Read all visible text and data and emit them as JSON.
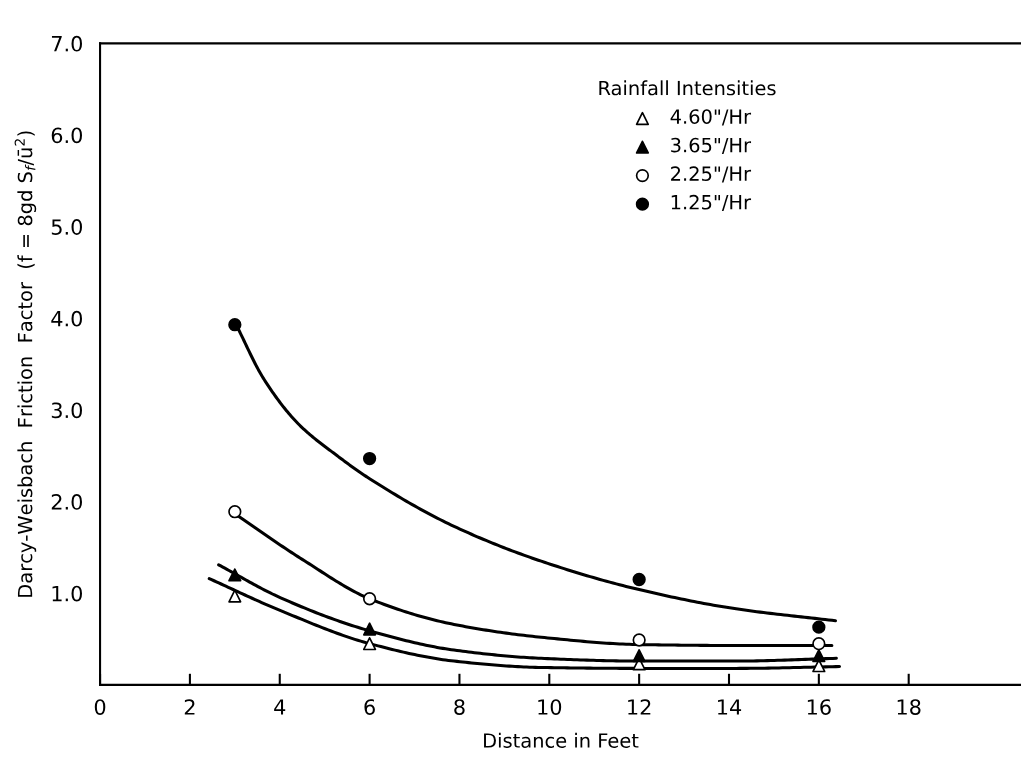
{
  "chart_data": {
    "type": "scatter",
    "xlabel": "Distance in Feet",
    "ylabel": "Darcy-Weisbach  Friction  Factor  (f = 8gd S$_{f}$/ū$^{2}$)",
    "legend_title": "Rainfall Intensities",
    "legend": "top",
    "grid": false,
    "xlim": [
      0,
      20.5
    ],
    "ylim": [
      0,
      7
    ],
    "xticks": [
      0,
      2,
      4,
      6,
      8,
      10,
      12,
      14,
      16,
      18
    ],
    "yticks": [
      {
        "value": 1,
        "label": "1.0"
      },
      {
        "value": 2,
        "label": "2.0"
      },
      {
        "value": 3,
        "label": "3.0"
      },
      {
        "value": 4,
        "label": "4.0"
      },
      {
        "value": 5,
        "label": "5.0"
      },
      {
        "value": 6,
        "label": "6.0"
      },
      {
        "value": 7,
        "label": "7.0"
      }
    ],
    "series": [
      {
        "name": "4.60\"/Hr",
        "marker": "triangle",
        "color": "#ffffff",
        "x": [
          3,
          6,
          12,
          16
        ],
        "values": [
          0.97,
          0.45,
          0.23,
          0.21
        ]
      },
      {
        "name": "3.65\"/Hr",
        "marker": "triangle",
        "color": "#000000",
        "x": [
          3,
          6,
          12,
          16
        ],
        "values": [
          1.2,
          0.61,
          0.32,
          0.32
        ]
      },
      {
        "name": "2.25\"/Hr",
        "marker": "circle",
        "color": "#ffffff",
        "x": [
          3,
          6,
          12,
          16
        ],
        "values": [
          1.89,
          0.94,
          0.49,
          0.45
        ]
      },
      {
        "name": "1.25\"/Hr",
        "marker": "circle",
        "color": "#000000",
        "x": [
          3,
          6,
          12,
          16
        ],
        "values": [
          3.93,
          2.47,
          1.15,
          0.63
        ]
      },
      {
        "type": "line",
        "marker": "none",
        "color": "#000000",
        "x": [
          3.05,
          3.63,
          4.41,
          5.28,
          6.0,
          7.88,
          9.82,
          12.0,
          14.16,
          16.37
        ],
        "values": [
          3.91,
          3.35,
          2.85,
          2.5,
          2.25,
          1.73,
          1.35,
          1.04,
          0.83,
          0.7
        ]
      },
      {
        "type": "line",
        "marker": "none",
        "color": "#000000",
        "x": [
          3.05,
          4.5,
          6.0,
          7.88,
          9.82,
          12.0,
          14.16,
          16.29
        ],
        "values": [
          1.85,
          1.37,
          0.94,
          0.66,
          0.52,
          0.44,
          0.43,
          0.43
        ]
      },
      {
        "type": "line",
        "marker": "none",
        "color": "#000000",
        "x": [
          2.64,
          4.02,
          6.0,
          7.88,
          9.82,
          12.0,
          14.16,
          16.39
        ],
        "values": [
          1.31,
          0.95,
          0.59,
          0.38,
          0.29,
          0.26,
          0.26,
          0.29
        ]
      },
      {
        "type": "line",
        "marker": "none",
        "color": "#000000",
        "x": [
          2.43,
          4.02,
          6.0,
          7.88,
          9.82,
          12.0,
          14.16,
          16.46
        ],
        "values": [
          1.16,
          0.81,
          0.45,
          0.26,
          0.19,
          0.18,
          0.18,
          0.2
        ]
      }
    ]
  }
}
